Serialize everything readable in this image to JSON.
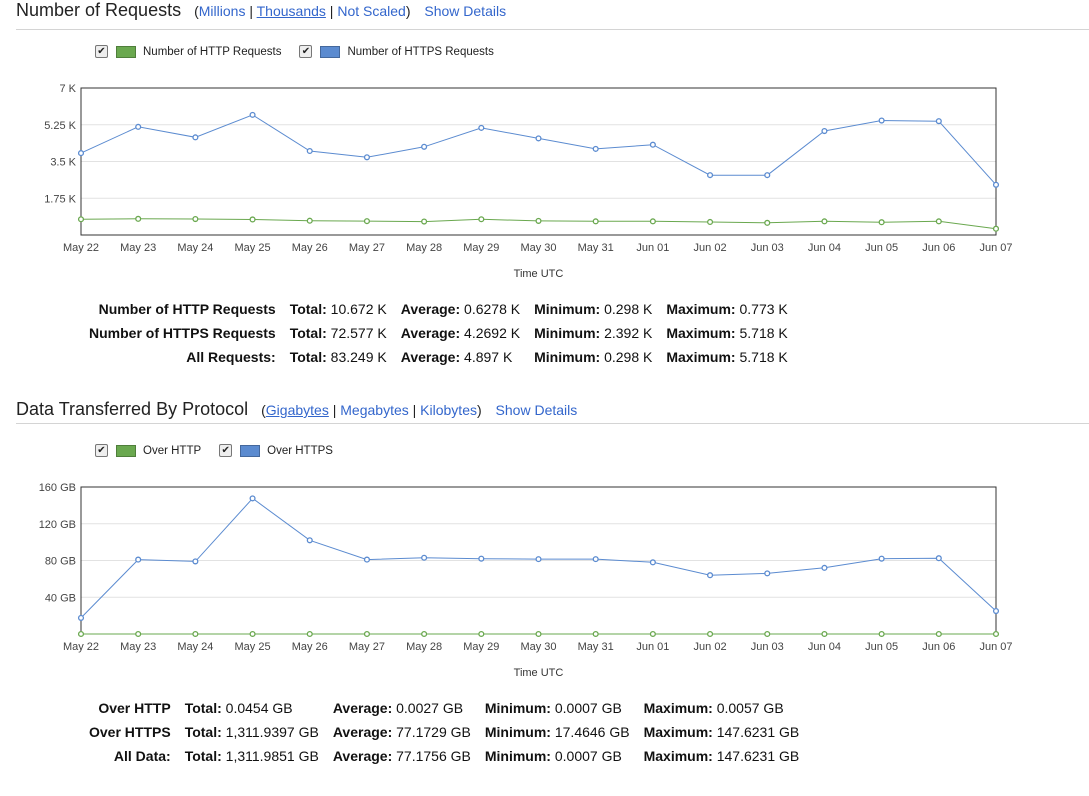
{
  "requests": {
    "title": "Number of Requests",
    "open_paren": "(",
    "close_paren": ")",
    "sep": "|",
    "scale_links": [
      "Millions",
      "Thousands",
      "Not Scaled"
    ],
    "show_details": "Show Details",
    "legend": [
      "Number of HTTP Requests",
      "Number of HTTPS Requests"
    ],
    "check": "✔",
    "stats": [
      {
        "name": "Number of HTTP Requests",
        "total": "10.672 K",
        "average": "0.6278 K",
        "minimum": "0.298 K",
        "maximum": "0.773 K"
      },
      {
        "name": "Number of HTTPS Requests",
        "total": "72.577 K",
        "average": "4.2692 K",
        "minimum": "2.392 K",
        "maximum": "5.718 K"
      },
      {
        "name": "All Requests:",
        "total": "83.249 K",
        "average": "4.897 K",
        "minimum": "0.298 K",
        "maximum": "5.718 K"
      }
    ]
  },
  "data_transfer": {
    "title": "Data Transferred By Protocol",
    "open_paren": "(",
    "close_paren": ")",
    "sep": "|",
    "scale_links": [
      "Gigabytes",
      "Megabytes",
      "Kilobytes"
    ],
    "show_details": "Show Details",
    "legend": [
      "Over HTTP",
      "Over HTTPS"
    ],
    "check": "✔",
    "stats": [
      {
        "name": "Over HTTP",
        "total": "0.0454 GB",
        "average": "0.0027 GB",
        "minimum": "0.0007 GB",
        "maximum": "0.0057 GB"
      },
      {
        "name": "Over HTTPS",
        "total": "1,311.9397 GB",
        "average": "77.1729 GB",
        "minimum": "17.4646 GB",
        "maximum": "147.6231 GB"
      },
      {
        "name": "All Data:",
        "total": "1,311.9851 GB",
        "average": "77.1756 GB",
        "minimum": "0.0007 GB",
        "maximum": "147.6231 GB"
      }
    ]
  },
  "stat_labels": {
    "total": "Total:",
    "average": "Average:",
    "minimum": "Minimum:",
    "maximum": "Maximum:"
  },
  "colors": {
    "http": "#6aa84f",
    "https": "#5b8bd0",
    "link": "#3366cc"
  },
  "chart_data": [
    {
      "type": "line",
      "xlabel": "Time UTC",
      "ylabel": "",
      "categories": [
        "May 22",
        "May 23",
        "May 24",
        "May 25",
        "May 26",
        "May 27",
        "May 28",
        "May 29",
        "May 30",
        "May 31",
        "Jun 01",
        "Jun 02",
        "Jun 03",
        "Jun 04",
        "Jun 05",
        "Jun 06",
        "Jun 07"
      ],
      "ylim": [
        0,
        7
      ],
      "yticks": [
        1.75,
        3.5,
        5.25,
        7
      ],
      "ytick_labels": [
        "1.75 K",
        "3.5 K",
        "5.25 K",
        "7 K"
      ],
      "grid": true,
      "legend": "top-left",
      "series": [
        {
          "name": "Number of HTTP Requests",
          "color": "#6aa84f",
          "values": [
            0.75,
            0.77,
            0.76,
            0.74,
            0.68,
            0.66,
            0.64,
            0.75,
            0.67,
            0.65,
            0.65,
            0.62,
            0.58,
            0.65,
            0.61,
            0.65,
            0.3
          ]
        },
        {
          "name": "Number of HTTPS Requests",
          "color": "#5b8bd0",
          "values": [
            3.9,
            5.15,
            4.65,
            5.72,
            4.0,
            3.7,
            4.2,
            5.1,
            4.6,
            4.1,
            4.3,
            2.85,
            2.85,
            4.95,
            5.45,
            5.42,
            2.39
          ]
        }
      ]
    },
    {
      "type": "line",
      "xlabel": "Time UTC",
      "ylabel": "",
      "categories": [
        "May 22",
        "May 23",
        "May 24",
        "May 25",
        "May 26",
        "May 27",
        "May 28",
        "May 29",
        "May 30",
        "May 31",
        "Jun 01",
        "Jun 02",
        "Jun 03",
        "Jun 04",
        "Jun 05",
        "Jun 06",
        "Jun 07"
      ],
      "ylim": [
        0,
        160
      ],
      "yticks": [
        40,
        80,
        120,
        160
      ],
      "ytick_labels": [
        "40 GB",
        "80 GB",
        "120 GB",
        "160 GB"
      ],
      "grid": true,
      "legend": "top-left",
      "series": [
        {
          "name": "Over HTTP",
          "color": "#6aa84f",
          "values": [
            0.0007,
            0.003,
            0.003,
            0.0057,
            0.004,
            0.003,
            0.003,
            0.003,
            0.003,
            0.003,
            0.003,
            0.002,
            0.002,
            0.003,
            0.003,
            0.003,
            0.001
          ]
        },
        {
          "name": "Over HTTPS",
          "color": "#5b8bd0",
          "values": [
            17.5,
            81,
            79,
            147.6,
            102,
            81,
            83,
            82,
            81.5,
            81.5,
            78,
            64,
            66,
            72,
            82,
            82.5,
            25
          ]
        }
      ]
    }
  ]
}
